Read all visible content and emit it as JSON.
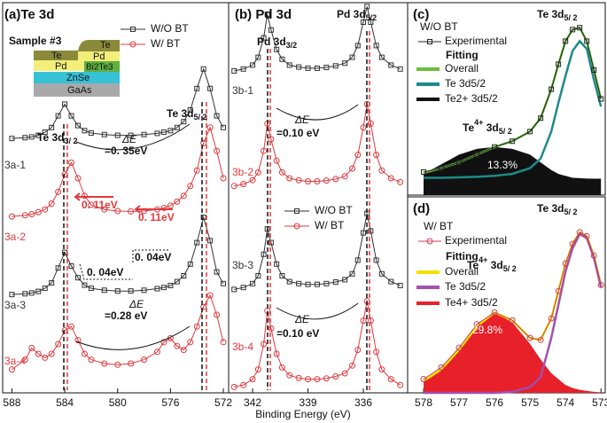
{
  "x_label": "Binding Energy (eV)",
  "chart_data": [
    {
      "type": "line",
      "title": "(a)Te 3d",
      "xlim": [
        588.7,
        571.6
      ],
      "xticks": [
        588,
        584,
        580,
        576,
        572
      ],
      "ylim": [
        0,
        100
      ],
      "x": [
        588,
        587,
        586.5,
        586,
        585.5,
        585,
        584.5,
        584,
        583.5,
        583,
        582.5,
        582,
        581,
        580,
        579,
        578,
        577,
        576.5,
        576,
        575.5,
        575,
        574.5,
        574,
        573.5,
        573,
        572.5,
        572
      ],
      "series": [
        {
          "name": "3a-1",
          "color": "#333333",
          "marker": "square",
          "values": [
            65.2,
            65.4,
            65.6,
            66,
            66.8,
            68,
            71,
            74,
            71,
            68.5,
            67.2,
            66.6,
            66.2,
            66,
            66,
            66.2,
            66.5,
            66.8,
            67.2,
            68,
            69.5,
            72.5,
            78,
            83,
            78,
            71,
            68
          ]
        },
        {
          "name": "3a-2",
          "color": "#e0393e",
          "marker": "circle",
          "values": [
            45.2,
            45.5,
            45.8,
            46.3,
            47,
            48.5,
            51.5,
            56,
            59,
            55,
            50.5,
            48.2,
            47,
            46.6,
            46.5,
            46.6,
            47,
            47.4,
            48,
            49,
            50.5,
            53,
            57,
            64,
            68,
            62,
            55
          ]
        },
        {
          "name": "3a-3",
          "color": "#333333",
          "marker": "square",
          "values": [
            25.2,
            25.4,
            25.6,
            26,
            26.8,
            28.2,
            32,
            36,
            32.5,
            29.5,
            27.6,
            26.8,
            26.3,
            26.1,
            26.1,
            26.3,
            26.7,
            27,
            27.5,
            28.5,
            30,
            33,
            38.5,
            45,
            39,
            31,
            28
          ]
        },
        {
          "name": "3a-4",
          "color": "#e0393e",
          "marker": "circle",
          "values": [
            6,
            8.5,
            11.5,
            10,
            9,
            10,
            12.5,
            16,
            17,
            13.5,
            10,
            8.5,
            7.5,
            7.2,
            7.5,
            8.5,
            10.5,
            13,
            14,
            12,
            11,
            13,
            17,
            22,
            25,
            20,
            13
          ]
        }
      ],
      "legend": [
        {
          "name": "W/O BT",
          "color": "#333333",
          "marker": "square"
        },
        {
          "name": "W/ BT",
          "color": "#e0393e",
          "marker": "circle"
        }
      ],
      "inset": {
        "title": "Sample #3",
        "layers": [
          "Te",
          "Te",
          "Pd",
          "Pd",
          "Bi2Te3",
          "ZnSe",
          "GaAs"
        ]
      },
      "annotations": {
        "peak_left": {
          "main": "Te 3d",
          "sub": "3/ 2"
        },
        "peak_right": {
          "main": "Te 3d",
          "sub": "5/ 2"
        },
        "delta_top": "ΔE",
        "shift_top": "=0. 35eV",
        "red_left": "0. 11eV",
        "red_right": "0. 11eV",
        "black_right": "0. 04eV",
        "black_left": "0. 04eV",
        "delta_bottom": "ΔE",
        "shift_bottom": "=0.28 eV"
      }
    },
    {
      "type": "line",
      "title": "(b) Pd 3d",
      "xlim": [
        343.3,
        333.6
      ],
      "xticks": [
        342,
        339,
        336
      ],
      "ylim": [
        0,
        100
      ],
      "x": [
        343,
        342.5,
        342,
        341.7,
        341.4,
        341.2,
        341,
        340.7,
        340.4,
        340,
        339.5,
        339,
        338.5,
        338,
        337.5,
        337,
        336.6,
        336.3,
        336,
        335.8,
        335.6,
        335.3,
        335,
        334.5,
        334
      ],
      "series": [
        {
          "name": "3b-1",
          "color": "#333333",
          "marker": "square",
          "values": [
            82.5,
            83,
            84,
            86,
            91,
            97,
            93,
            88,
            85.5,
            84,
            83.5,
            83.2,
            83.2,
            83.4,
            83.8,
            84.5,
            86,
            89,
            95,
            99,
            95,
            89,
            86,
            84,
            83
          ]
        },
        {
          "name": "3b-2",
          "color": "#e0393e",
          "marker": "circle",
          "values": [
            53,
            53.5,
            54.5,
            56.5,
            62,
            69,
            65,
            59.5,
            56.5,
            55,
            54.5,
            54.2,
            54.2,
            54.4,
            54.8,
            55.5,
            57.5,
            61,
            68,
            74,
            69,
            61,
            57,
            55,
            54
          ]
        },
        {
          "name": "3b-3",
          "color": "#333333",
          "marker": "square",
          "values": [
            26.5,
            27,
            28,
            30,
            35.5,
            42,
            38.5,
            33,
            30,
            28.5,
            28,
            27.8,
            27.8,
            28,
            28.4,
            29,
            30.5,
            34,
            41,
            46,
            41.5,
            34,
            30.5,
            28.5,
            27.5
          ]
        },
        {
          "name": "3b-4",
          "color": "#e0393e",
          "marker": "circle",
          "values": [
            1.5,
            2,
            3.5,
            6,
            12.5,
            21,
            16.5,
            10,
            6.5,
            4.5,
            3.8,
            3.5,
            3.5,
            3.7,
            4.2,
            5,
            7,
            11,
            18.5,
            23.5,
            18.5,
            10.5,
            6,
            3.5,
            2
          ]
        }
      ],
      "legend": [
        {
          "name": "W/O BT",
          "color": "#333333",
          "marker": "square"
        },
        {
          "name": "W/ BT",
          "color": "#e0393e",
          "marker": "circle"
        }
      ],
      "annotations": {
        "peak_left": {
          "main": "Pd 3d",
          "sub": "3/2"
        },
        "peak_right": {
          "main": "Pd 3d",
          "sub": "5/2"
        },
        "delta_top": "ΔE",
        "shift_top": "=0.10 eV",
        "delta_bottom": "ΔE",
        "shift_bottom": "=0.10 eV"
      }
    },
    {
      "type": "line",
      "title": "(c)",
      "xlim": [
        578.45,
        572.88
      ],
      "ylim": [
        0,
        100
      ],
      "x": [
        578,
        577.5,
        577,
        576.5,
        576,
        575.5,
        575,
        574.7,
        574.4,
        574.2,
        574,
        573.8,
        573.6,
        573.4,
        573.2,
        573
      ],
      "series": [
        {
          "name": "Experimental",
          "color": "#222222",
          "style": "markers",
          "marker": "square",
          "values": [
            12,
            14,
            17,
            21,
            25,
            28,
            33,
            40,
            55,
            68,
            80,
            86,
            87,
            80,
            65,
            50
          ]
        },
        {
          "name": "Overall",
          "color": "#6abf3c",
          "style": "line",
          "values": [
            11.5,
            14,
            17,
            21,
            25,
            28,
            33,
            40,
            55,
            68,
            80,
            86,
            87,
            80,
            65,
            50
          ]
        },
        {
          "name": "Te 3d5/2",
          "color": "#1f8a8a",
          "style": "line",
          "values": [
            9,
            9,
            9.2,
            9.5,
            10,
            11,
            14,
            19,
            33,
            48,
            62,
            75,
            80,
            76,
            60,
            46
          ]
        },
        {
          "name": "Te2+ 3d5/2",
          "color": "#111111",
          "style": "area",
          "values": [
            11,
            16,
            21,
            24,
            25,
            24,
            21,
            17,
            13,
            11,
            10,
            9,
            8.8,
            8.6,
            8.5,
            8.5
          ]
        }
      ],
      "legend_title": "W/O BT",
      "fitting_label": "Fitting",
      "annotations": {
        "heading": {
          "main": "Te 3d",
          "sub": "5/ 2"
        },
        "peak": {
          "main": "Te",
          "sup": "4+",
          "rest": " 3d",
          "sub": "5/ 2"
        },
        "percent": "13.3%"
      }
    },
    {
      "type": "line",
      "title": "(d)",
      "xlim": [
        578.45,
        572.88
      ],
      "xticks": [
        578,
        577,
        576,
        575,
        574,
        573
      ],
      "ylim": [
        0,
        100
      ],
      "x": [
        578,
        577.5,
        577,
        576.5,
        576,
        575.5,
        575,
        574.7,
        574.4,
        574.2,
        574,
        573.8,
        573.6,
        573.4,
        573.2,
        573
      ],
      "series": [
        {
          "name": "Experimental",
          "color": "#c8405a",
          "style": "markers",
          "marker": "circle",
          "values": [
            7,
            13,
            23,
            35,
            41,
            37,
            28,
            27,
            38,
            52,
            66,
            76,
            82,
            80,
            70,
            55
          ]
        },
        {
          "name": "Overall",
          "color": "#f5e000",
          "style": "line",
          "values": [
            6,
            12,
            22,
            34,
            41,
            37,
            28,
            27,
            38,
            52,
            66,
            76,
            82,
            80,
            70,
            55
          ]
        },
        {
          "name": "Te 3d5/2",
          "color": "#a050b0",
          "style": "line",
          "values": [
            0,
            0,
            0,
            0,
            0,
            0.5,
            3,
            8,
            28,
            45,
            62,
            74,
            81,
            79,
            69,
            54
          ]
        },
        {
          "name": "Te4+ 3d5/2",
          "color": "#e8202a",
          "style": "area",
          "values": [
            6,
            12,
            22,
            34,
            41,
            36,
            25,
            17,
            10,
            7,
            4,
            2.5,
            1.5,
            1,
            0.5,
            0.3
          ]
        }
      ],
      "legend_title": "W/ BT",
      "fitting_label": "Fitting",
      "annotations": {
        "heading": {
          "main": "Te 3d",
          "sub": "5/ 2"
        },
        "peak": {
          "main": "Te",
          "sup": "4+",
          "rest": " 3d",
          "sub": "5/ 2"
        },
        "percent": "29.8%"
      }
    }
  ]
}
